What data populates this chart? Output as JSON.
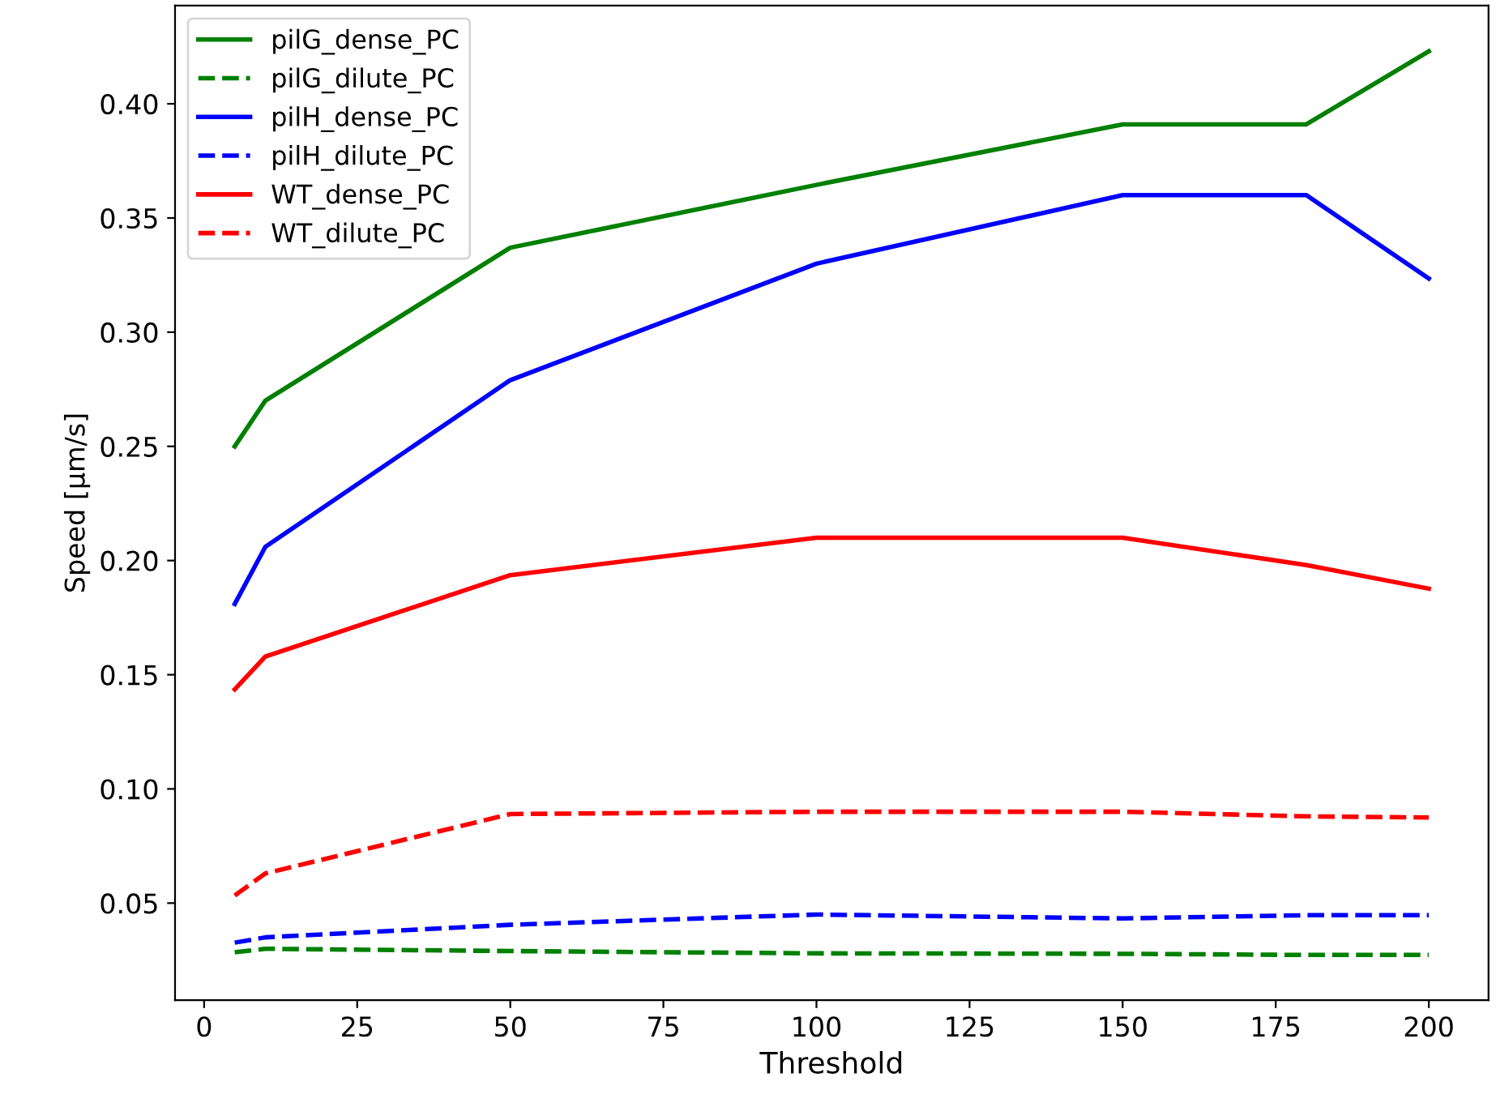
{
  "chart_data": {
    "type": "line",
    "xlabel": "Threshold",
    "ylabel": "Speed [µm/s]",
    "x": [
      5,
      10,
      50,
      100,
      150,
      180,
      200
    ],
    "xlim": [
      -4.75,
      209.75
    ],
    "xticks": [
      0,
      25,
      50,
      75,
      100,
      125,
      150,
      175,
      200
    ],
    "ylim": [
      0.0075,
      0.443
    ],
    "yticks": [
      {
        "value": 0.05,
        "label": "0.05"
      },
      {
        "value": 0.1,
        "label": "0.10"
      },
      {
        "value": 0.15,
        "label": "0.15"
      },
      {
        "value": 0.2,
        "label": "0.20"
      },
      {
        "value": 0.25,
        "label": "0.25"
      },
      {
        "value": 0.3,
        "label": "0.30"
      },
      {
        "value": 0.35,
        "label": "0.35"
      },
      {
        "value": 0.4,
        "label": "0.40"
      }
    ],
    "legend": "top left",
    "grid": false,
    "series": [
      {
        "name": "pilG_dense_PC",
        "color": "#008000",
        "line_style": "solid",
        "values": [
          0.25,
          0.27,
          0.337,
          0.3645,
          0.391,
          0.391,
          0.423
        ]
      },
      {
        "name": "pilG_dilute_PC",
        "color": "#008000",
        "line_style": "dashed",
        "values": [
          0.0285,
          0.03,
          0.029,
          0.028,
          0.0278,
          0.0273,
          0.0273
        ]
      },
      {
        "name": "pilH_dense_PC",
        "color": "#0000ff",
        "line_style": "solid",
        "values": [
          0.181,
          0.206,
          0.279,
          0.33,
          0.36,
          0.36,
          0.3235
        ]
      },
      {
        "name": "pilH_dilute_PC",
        "color": "#0000ff",
        "line_style": "dashed",
        "values": [
          0.0327,
          0.035,
          0.0405,
          0.045,
          0.0433,
          0.0447,
          0.0447
        ]
      },
      {
        "name": "WT_dense_PC",
        "color": "#ff0000",
        "line_style": "solid",
        "values": [
          0.1436,
          0.158,
          0.1936,
          0.21,
          0.21,
          0.198,
          0.1877
        ]
      },
      {
        "name": "WT_dilute_PC",
        "color": "#ff0000",
        "line_style": "dashed",
        "values": [
          0.0533,
          0.063,
          0.089,
          0.09,
          0.09,
          0.088,
          0.0875
        ]
      }
    ]
  }
}
